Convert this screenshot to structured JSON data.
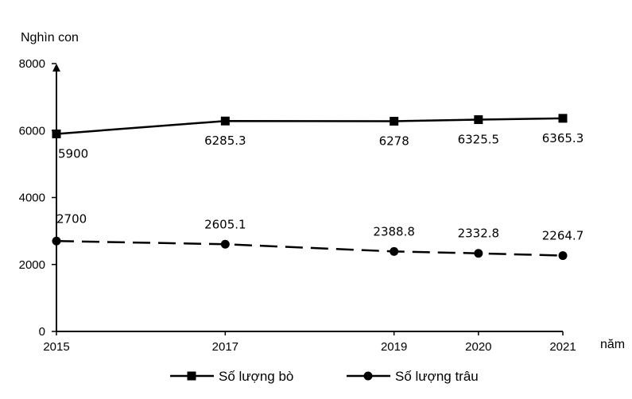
{
  "chart_data": {
    "type": "line",
    "title": "",
    "ylabel": "Nghìn con",
    "xlabel": "năm",
    "x": [
      2015,
      2017,
      2019,
      2020,
      2021
    ],
    "ylim": [
      0,
      8000
    ],
    "yticks": [
      0,
      2000,
      4000,
      6000,
      8000
    ],
    "grid": false,
    "legend_position": "bottom",
    "series": [
      {
        "name": "Số lượng bò",
        "values": [
          5900,
          6285.3,
          6278,
          6325.5,
          6365.3
        ],
        "labels": [
          "5900",
          "6285.3",
          "6278",
          "6325.5",
          "6365.3"
        ],
        "line_style": "solid",
        "marker": "square",
        "color": "#000000"
      },
      {
        "name": "Số lượng trâu",
        "values": [
          2700,
          2605.1,
          2388.8,
          2332.8,
          2264.7
        ],
        "labels": [
          "2700",
          "2605.1",
          "2388.8",
          "2332.8",
          "2264.7"
        ],
        "line_style": "dashed",
        "marker": "circle",
        "color": "#000000"
      }
    ]
  }
}
